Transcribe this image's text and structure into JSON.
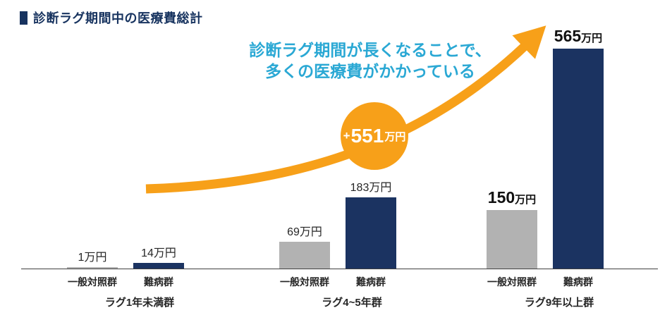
{
  "header": {
    "title": "診断ラグ期間中の医療費総計"
  },
  "annotation": {
    "line1": "診断ラグ期間が長くなることで、",
    "line2": "多くの医療費がかかっている",
    "color": "#2aa8d4"
  },
  "colors": {
    "navy_bar": "#1b3361",
    "gray_bar": "#b2b2b2",
    "orange_arrow": "#f7a019",
    "teal_text": "#2aa8d4",
    "title_navy": "#17335f"
  },
  "chart_data": {
    "type": "bar",
    "title": "診断ラグ期間中の医療費総計",
    "unit": "万円",
    "ylim": [
      0,
      600
    ],
    "legend_position": "none",
    "grid": false,
    "series": [
      "一般対照群",
      "難病群"
    ],
    "series_colors": {
      "一般対照群": "#b2b2b2",
      "難病群": "#1b3361"
    },
    "groups": [
      {
        "label": "ラグ1年未満群",
        "bars": [
          {
            "series": "一般対照群",
            "value": 1,
            "label_num": "1",
            "label_unit": "万円"
          },
          {
            "series": "難病群",
            "value": 14,
            "label_num": "14",
            "label_unit": "万円"
          }
        ]
      },
      {
        "label": "ラグ4~5年群",
        "bars": [
          {
            "series": "一般対照群",
            "value": 69,
            "label_num": "69",
            "label_unit": "万円"
          },
          {
            "series": "難病群",
            "value": 183,
            "label_num": "183",
            "label_unit": "万円"
          }
        ]
      },
      {
        "label": "ラグ9年以上群",
        "bars": [
          {
            "series": "一般対照群",
            "value": 150,
            "label_num": "150",
            "label_unit": "万円"
          },
          {
            "series": "難病群",
            "value": 565,
            "label_num": "565",
            "label_unit": "万円"
          }
        ]
      }
    ],
    "difference_badge": {
      "plus": "+",
      "num": "551",
      "unit": "万円"
    },
    "annotation": "診断ラグ期間が長くなることで、多くの医療費がかかっている"
  }
}
